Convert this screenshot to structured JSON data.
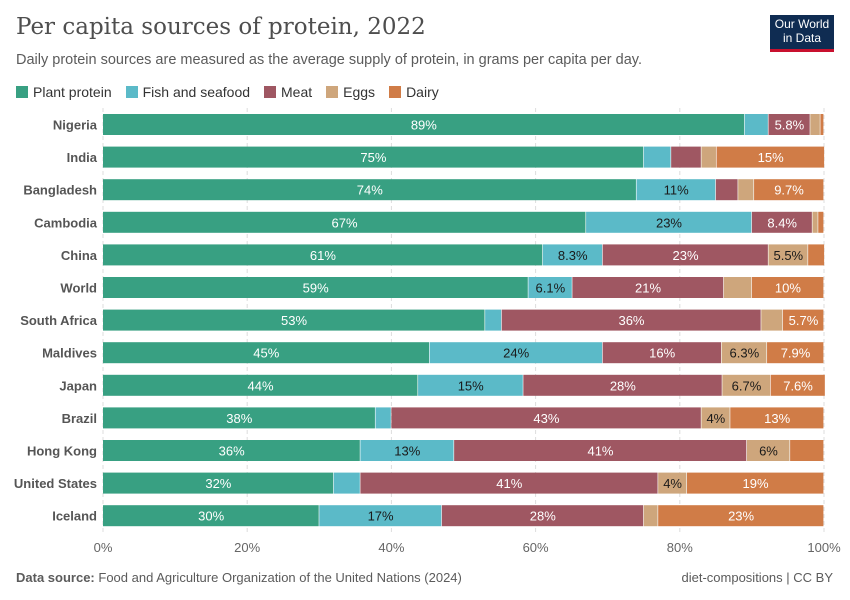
{
  "header": {
    "title": "Per capita sources of protein, 2022",
    "subtitle": "Daily protein sources are measured as the average supply of protein, in grams per capita per day.",
    "logo": "Our World in Data"
  },
  "footer": {
    "source_label": "Data source:",
    "source": "Food and Agriculture Organization of the United Nations (2024)",
    "right": "diet-compositions | CC BY"
  },
  "chart_data": {
    "type": "bar",
    "stacked": true,
    "orientation": "horizontal",
    "normalized": true,
    "xlim": [
      0,
      100
    ],
    "xticks": [
      "0%",
      "20%",
      "40%",
      "60%",
      "80%",
      "100%"
    ],
    "grid": true,
    "legend": "top-left",
    "categories": [
      "Nigeria",
      "India",
      "Bangladesh",
      "Cambodia",
      "China",
      "World",
      "South Africa",
      "Maldives",
      "Japan",
      "Brazil",
      "Hong Kong",
      "United States",
      "Iceland"
    ],
    "series": [
      {
        "name": "Plant protein",
        "color": "#38a082",
        "text_color": "#ffffff",
        "values": [
          89,
          75,
          74,
          67,
          61,
          59,
          53,
          45.3,
          43.7,
          37.8,
          35.7,
          32,
          30
        ],
        "labels": [
          "89%",
          "75%",
          "74%",
          "67%",
          "61%",
          "59%",
          "53%",
          "45%",
          "44%",
          "38%",
          "36%",
          "32%",
          "30%"
        ]
      },
      {
        "name": "Fish and seafood",
        "color": "#5bbac8",
        "text_color": "#1a1a1a",
        "values": [
          3.3,
          3.8,
          11,
          23,
          8.3,
          6.1,
          2.3,
          24,
          14.6,
          2.2,
          13,
          3.7,
          17
        ],
        "labels": [
          "",
          "",
          "11%",
          "23%",
          "8.3%",
          "6.1%",
          "",
          "24%",
          "15%",
          "",
          "13%",
          "",
          "17%"
        ]
      },
      {
        "name": "Meat",
        "color": "#9f5762",
        "text_color": "#ffffff",
        "values": [
          5.8,
          4.2,
          3.1,
          8.4,
          23,
          21,
          36,
          16.5,
          27.6,
          43,
          40.6,
          41.3,
          28
        ],
        "labels": [
          "5.8%",
          "",
          "",
          "8.4%",
          "23%",
          "21%",
          "36%",
          "16%",
          "28%",
          "43%",
          "41%",
          "41%",
          "28%"
        ]
      },
      {
        "name": "Eggs",
        "color": "#cea67c",
        "text_color": "#1a1a1a",
        "values": [
          1.4,
          2.1,
          2.2,
          0.8,
          5.5,
          3.9,
          3,
          6.3,
          6.7,
          4,
          6,
          4,
          2
        ],
        "labels": [
          "",
          "",
          "",
          "",
          "5.5%",
          "",
          "",
          "6.3%",
          "6.7%",
          "4%",
          "6%",
          "4%",
          ""
        ]
      },
      {
        "name": "Dairy",
        "color": "#d07c47",
        "text_color": "#ffffff",
        "values": [
          0.5,
          15,
          9.7,
          0.8,
          2.3,
          10,
          5.7,
          7.9,
          7.6,
          13,
          4.7,
          19,
          23
        ],
        "labels": [
          "",
          "15%",
          "9.7%",
          "",
          "",
          "10%",
          "5.7%",
          "7.9%",
          "7.6%",
          "13%",
          "",
          "19%",
          "23%"
        ]
      }
    ]
  }
}
